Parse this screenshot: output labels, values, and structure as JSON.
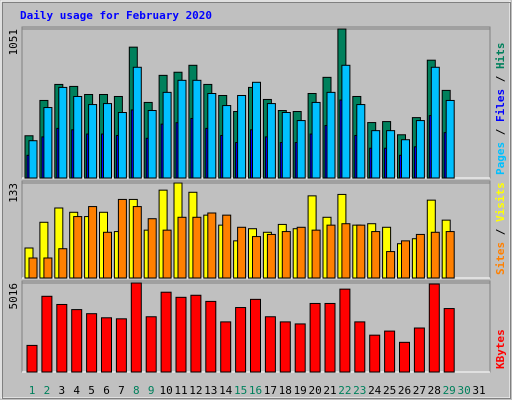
{
  "chart_data": [
    {
      "type": "bar",
      "title": "Daily usage for February 2020",
      "title_color": "#0000ff",
      "ylim": [
        0,
        1051
      ],
      "yticks": [
        1051
      ],
      "legend_separator": " / ",
      "series": [
        {
          "name": "Hits",
          "color": "#00805c",
          "values": [
            298,
            547,
            660,
            646,
            589,
            589,
            575,
            923,
            533,
            724,
            746,
            795,
            660,
            582,
            469,
            639,
            554,
            476,
            469,
            596,
            710,
            1051,
            575,
            391,
            398,
            305,
            426,
            831,
            618,
            null,
            null
          ]
        },
        {
          "name": "Files",
          "color": "#0000ff",
          "values": [
            160,
            290,
            350,
            340,
            310,
            310,
            300,
            480,
            280,
            380,
            390,
            420,
            350,
            300,
            250,
            340,
            290,
            250,
            250,
            310,
            370,
            550,
            300,
            210,
            210,
            160,
            220,
            440,
            320,
            null,
            null
          ]
        },
        {
          "name": "Pages",
          "color": "#00c0ff",
          "values": [
            263,
            497,
            639,
            575,
            518,
            525,
            462,
            781,
            476,
            604,
            689,
            689,
            596,
            511,
            582,
            675,
            525,
            462,
            405,
            533,
            604,
            795,
            518,
            334,
            334,
            270,
            405,
            781,
            547,
            null,
            null
          ]
        }
      ]
    },
    {
      "type": "bar",
      "ylim": [
        0,
        133
      ],
      "yticks": [
        133
      ],
      "legend_separator": " / ",
      "series": [
        {
          "name": "Visits",
          "color": "#ffff00",
          "values": [
            42,
            78,
            98,
            92,
            86,
            92,
            65,
            110,
            67,
            123,
            133,
            120,
            88,
            74,
            52,
            69,
            64,
            75,
            69,
            115,
            85,
            117,
            74,
            76,
            71,
            48,
            55,
            109,
            81,
            null,
            null
          ]
        },
        {
          "name": "Sites",
          "color": "#ff8000",
          "values": [
            28,
            28,
            41,
            86,
            100,
            64,
            110,
            100,
            83,
            67,
            85,
            85,
            91,
            88,
            71,
            58,
            61,
            65,
            71,
            67,
            74,
            76,
            74,
            65,
            37,
            52,
            61,
            64,
            65,
            null,
            null
          ]
        }
      ]
    },
    {
      "type": "bar",
      "ylim": [
        0,
        5016
      ],
      "yticks": [
        5016
      ],
      "categories": [
        "1",
        "2",
        "3",
        "4",
        "5",
        "6",
        "7",
        "8",
        "9",
        "10",
        "11",
        "12",
        "13",
        "14",
        "15",
        "16",
        "17",
        "18",
        "19",
        "20",
        "21",
        "22",
        "23",
        "24",
        "25",
        "26",
        "27",
        "28",
        "29",
        "30",
        "31"
      ],
      "category_colors": [
        "#00805c",
        "#00805c",
        "#000000",
        "#000000",
        "#000000",
        "#000000",
        "#000000",
        "#00805c",
        "#00805c",
        "#000000",
        "#000000",
        "#000000",
        "#000000",
        "#000000",
        "#00805c",
        "#00805c",
        "#000000",
        "#000000",
        "#000000",
        "#000000",
        "#000000",
        "#00805c",
        "#00805c",
        "#000000",
        "#000000",
        "#000000",
        "#000000",
        "#000000",
        "#00805c",
        "#00805c",
        "#000000"
      ],
      "series": [
        {
          "name": "KBytes",
          "color": "#ff0000",
          "values": [
            1499,
            4267,
            3806,
            3517,
            3287,
            3056,
            2998,
            5016,
            3114,
            4497,
            4209,
            4325,
            3979,
            2825,
            3633,
            4094,
            3114,
            2825,
            2710,
            3863,
            3863,
            4670,
            2825,
            2076,
            2306,
            1672,
            2479,
            4959,
            3575,
            null,
            null
          ]
        }
      ]
    }
  ]
}
